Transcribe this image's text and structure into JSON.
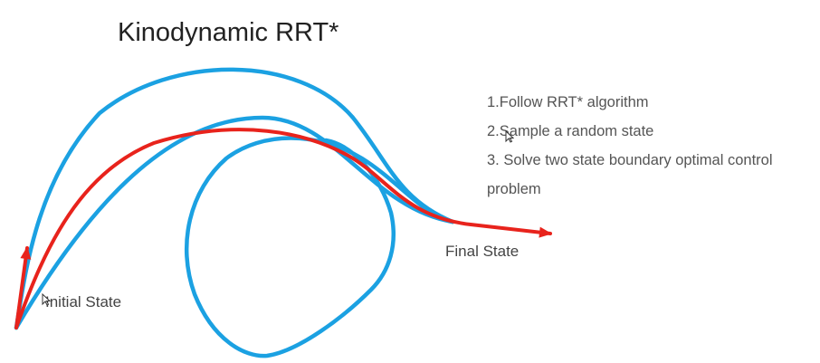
{
  "title": "Kinodynamic RRT*",
  "steps": [
    "1.Follow RRT* algorithm",
    "2.Sample a random state",
    "3. Solve two state boundary optimal control problem"
  ],
  "labels": {
    "final_state": "Final State",
    "initial_state": "Initial State"
  },
  "colors": {
    "candidate_trajectories": "#1ba1e2",
    "optimal_trajectory": "#e8231c",
    "title_text": "#222222",
    "body_text": "#555555"
  },
  "icons": [
    "mouse-cursor-icon"
  ]
}
